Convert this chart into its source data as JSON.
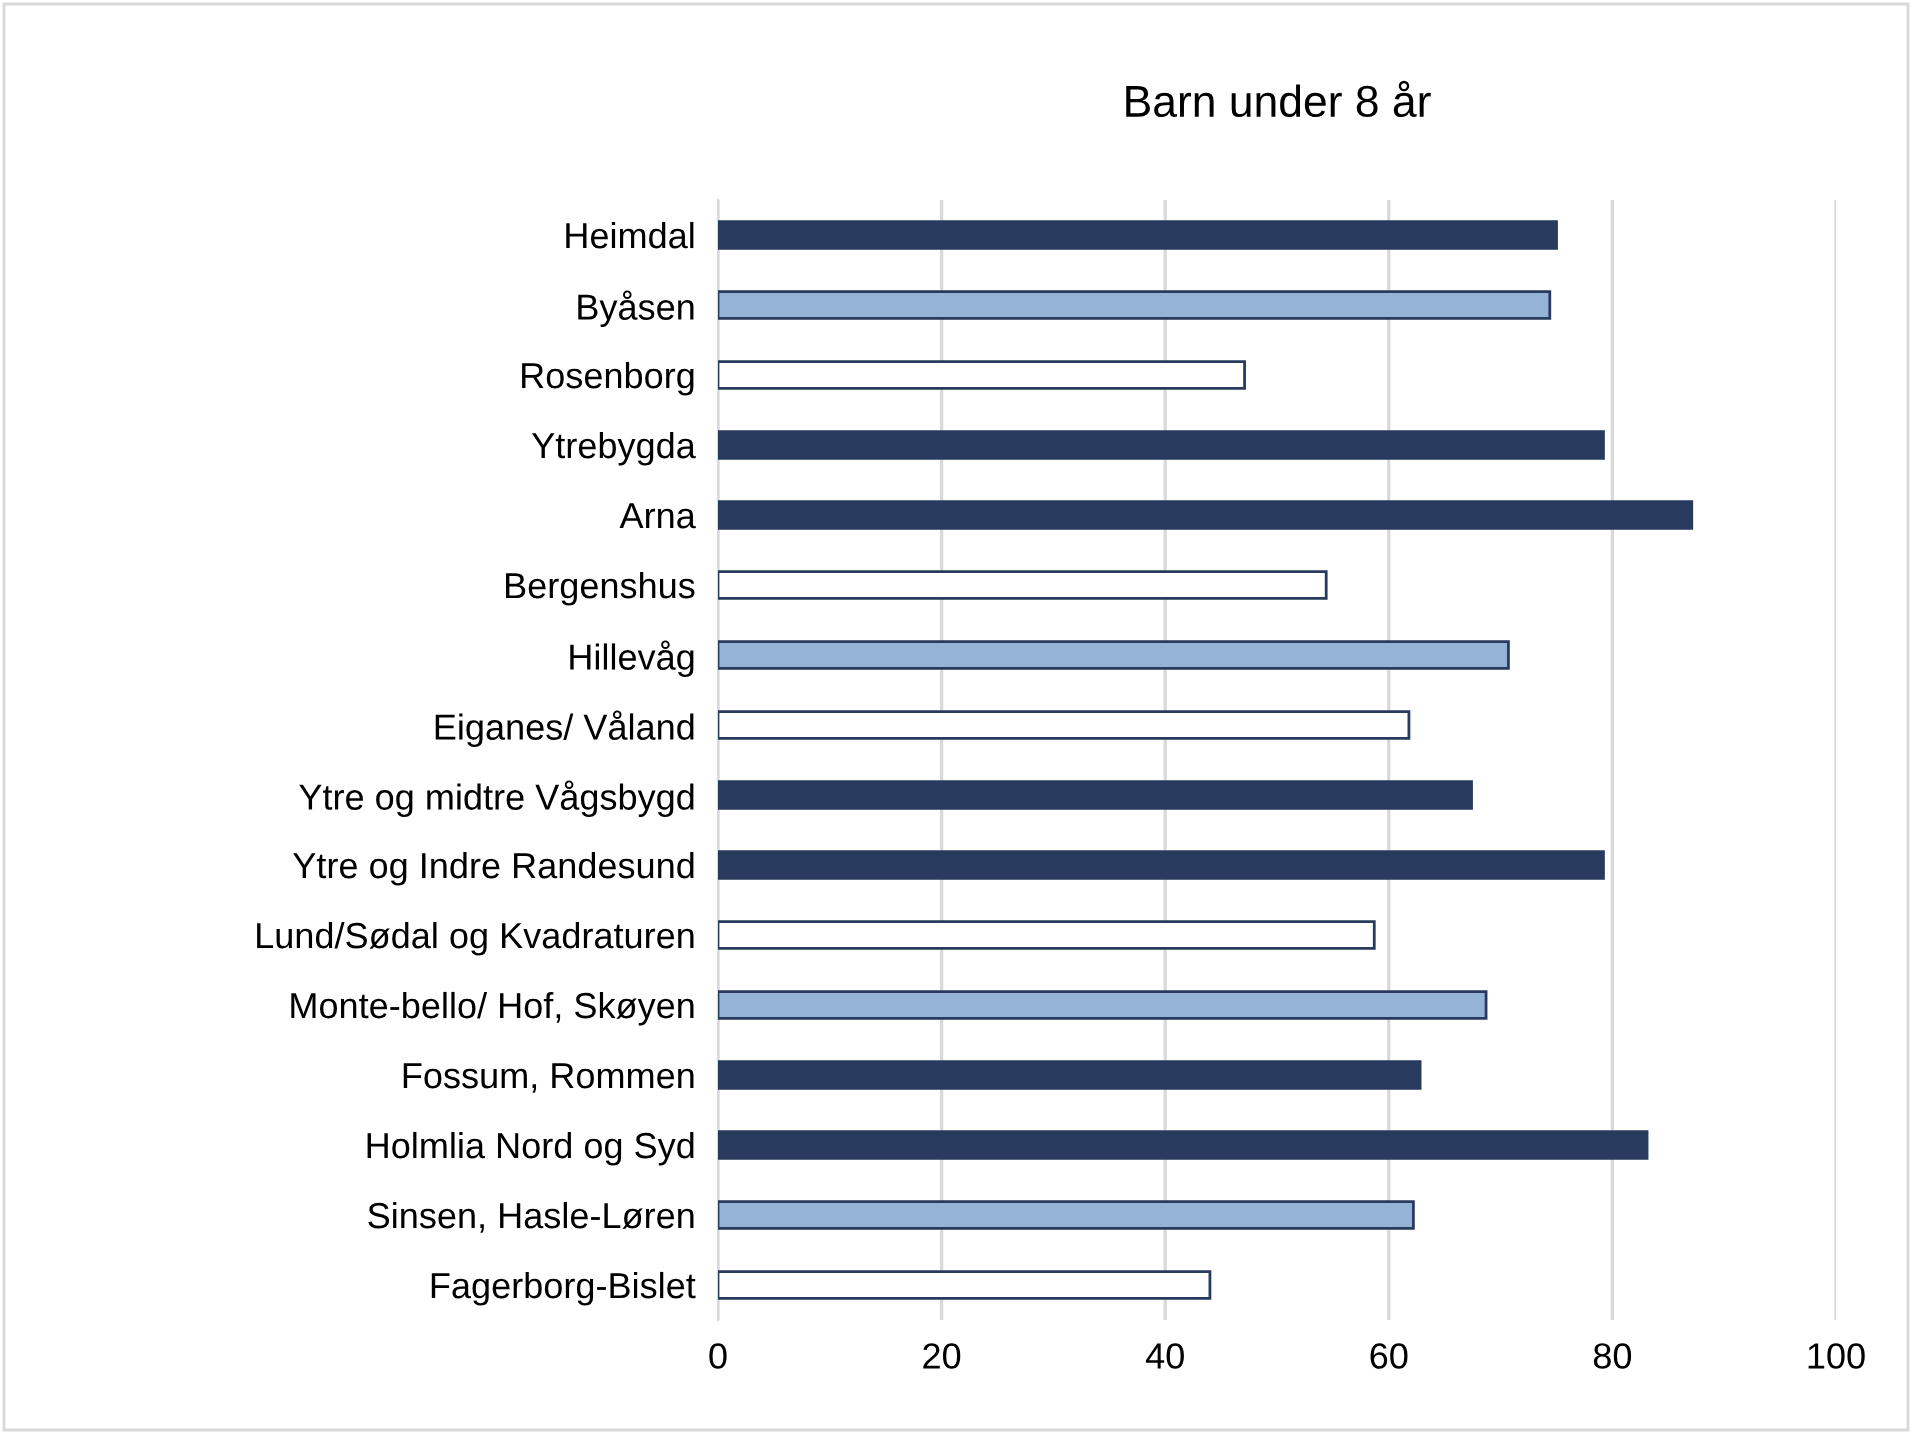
{
  "chart_data": {
    "type": "bar",
    "orientation": "horizontal",
    "title": "Barn under 8 år",
    "categories": [
      "Heimdal",
      "Byåsen",
      "Rosenborg",
      "Ytrebygda",
      "Arna",
      "Bergenshus",
      "Hillevåg",
      "Eiganes/ Våland",
      "Ytre og midtre Vågsbygd",
      "Ytre og Indre Randesund",
      "Lund/Sødal og Kvadraturen",
      "Monte-bello/ Hof, Skøyen",
      "Fossum, Rommen",
      "Holmlia Nord og Syd",
      "Sinsen, Hasle-Løren",
      "Fagerborg-Bislet"
    ],
    "values": [
      75,
      74.4,
      47.1,
      79.2,
      87.1,
      54.4,
      70.7,
      61.8,
      67.4,
      79.2,
      58.7,
      68.7,
      62.8,
      83.1,
      62.2,
      44.0
    ],
    "colors": [
      "#283a5e",
      "#95b3d7",
      "#ffffff",
      "#283a5e",
      "#283a5e",
      "#ffffff",
      "#95b3d7",
      "#ffffff",
      "#283a5e",
      "#283a5e",
      "#ffffff",
      "#95b3d7",
      "#283a5e",
      "#283a5e",
      "#95b3d7",
      "#ffffff"
    ],
    "xlim": [
      0,
      100
    ],
    "xticks": [
      0,
      20,
      40,
      60,
      80,
      100
    ],
    "grid": "x"
  }
}
